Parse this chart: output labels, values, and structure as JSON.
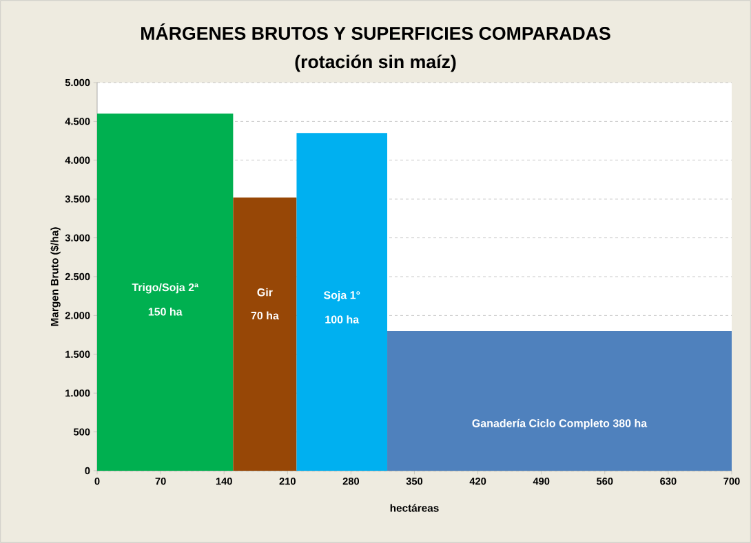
{
  "chart_data": {
    "type": "histogram",
    "title": "MÁRGENES BRUTOS Y SUPERFICIES COMPARADAS",
    "subtitle": "(rotación sin maíz)",
    "xlabel": "hectáreas",
    "ylabel": "Margen Bruto  ($/ha)",
    "bins": [
      0,
      150,
      220,
      320,
      700
    ],
    "values": [
      4600,
      3520,
      4350,
      1800
    ],
    "colors": [
      "#00b050",
      "#974706",
      "#00b0f0",
      "#4f81bd"
    ],
    "xlim": [
      0,
      700
    ],
    "xticks": [
      0,
      70,
      140,
      210,
      280,
      350,
      420,
      490,
      560,
      630,
      700
    ],
    "ylim": [
      0,
      5000
    ],
    "yticks": [
      {
        "value": 0,
        "label": "0"
      },
      {
        "value": 500,
        "label": "500"
      },
      {
        "value": 1000,
        "label": "1.000"
      },
      {
        "value": 1500,
        "label": "1.500"
      },
      {
        "value": 2000,
        "label": "2.000"
      },
      {
        "value": 2500,
        "label": "2.500"
      },
      {
        "value": 3000,
        "label": "3.000"
      },
      {
        "value": 3500,
        "label": "3.500"
      },
      {
        "value": 4000,
        "label": "4.000"
      },
      {
        "value": 4500,
        "label": "4.500"
      },
      {
        "value": 5000,
        "label": "5.000"
      }
    ],
    "grid": "y",
    "annotations": [
      "Trigo/Soja 2ª",
      "150 ha",
      "Gir",
      "70 ha",
      "Soja 1°",
      "100 ha",
      "Ganadería  Ciclo Completo 380 ha"
    ]
  }
}
